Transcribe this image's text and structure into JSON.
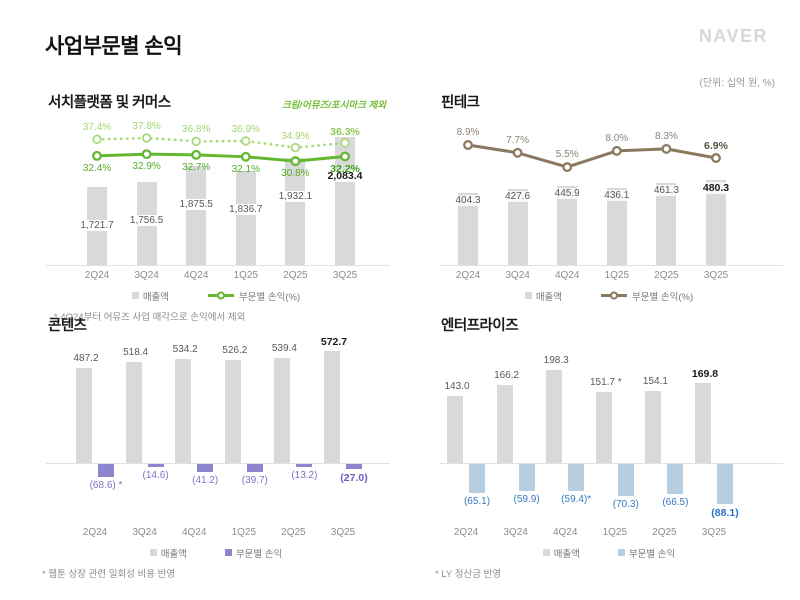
{
  "header": {
    "title": "사업부문별 손익",
    "logo": "NAVER",
    "unit_note": "(단위: 십억 원, %)"
  },
  "colors": {
    "bar_gray": "#d9d9d9",
    "green": "#63b830",
    "light_green": "#a9da7e",
    "brown": "#8a795e",
    "purple": "#8d86ce",
    "blue": "#b7cde0",
    "purple_label": "#7b73c6",
    "blue_label": "#3579c1"
  },
  "chart_data": [
    {
      "id": "search_commerce",
      "type": "bar",
      "title": "서치플랫폼 및 커머스",
      "note": "크림/어뮤즈/포시마크 제외",
      "categories": [
        "2Q24",
        "3Q24",
        "4Q24",
        "1Q25",
        "2Q25",
        "3Q25"
      ],
      "series": [
        {
          "name": "매출액",
          "type": "bar",
          "color": "#d9d9d9",
          "values": [
            1721.7,
            1756.5,
            1875.5,
            1836.7,
            1932.1,
            2083.4
          ],
          "labels": [
            "1,721.7",
            "1,756.5",
            "1,875.5",
            "1,836.7",
            "1,932.1",
            "2,083.4"
          ]
        },
        {
          "name": "부문별 손익(%)",
          "type": "line",
          "color": "#63b830",
          "values": [
            32.4,
            32.9,
            32.7,
            32.1,
            30.8,
            32.2
          ],
          "labels": [
            "32.4%",
            "32.9%",
            "32.7%",
            "32.1%",
            "30.8%",
            "32.2%"
          ]
        },
        {
          "name": "부문별 손익(%) 크림/어뮤즈/포시마크 제외",
          "type": "line-dotted",
          "color": "#a9da7e",
          "values": [
            37.4,
            37.8,
            36.8,
            36.9,
            34.9,
            36.3
          ],
          "labels": [
            "37.4%",
            "37.8%",
            "36.8%",
            "36.9%",
            "34.9%",
            "36.3%"
          ]
        }
      ],
      "legend": {
        "bar": "매출액",
        "line": "부문별 손익(%)"
      },
      "footnote": "* 4Q24부터 어뮤즈 사업 매각으로 손익에서 제외"
    },
    {
      "id": "fintech",
      "type": "bar",
      "title": "핀테크",
      "note": "",
      "categories": [
        "2Q24",
        "3Q24",
        "4Q24",
        "1Q25",
        "2Q25",
        "3Q25"
      ],
      "series": [
        {
          "name": "매출액",
          "type": "bar",
          "color": "#d9d9d9",
          "values": [
            404.3,
            427.6,
            445.9,
            436.1,
            461.3,
            480.3
          ],
          "labels": [
            "404.3",
            "427.6",
            "445.9",
            "436.1",
            "461.3",
            "480.3"
          ]
        },
        {
          "name": "부문별 손익(%)",
          "type": "line",
          "color": "#8a795e",
          "values": [
            8.9,
            7.7,
            5.5,
            8.0,
            8.3,
            6.9
          ],
          "labels": [
            "8.9%",
            "7.7%",
            "5.5%",
            "8.0%",
            "8.3%",
            "6.9%"
          ]
        }
      ],
      "legend": {
        "bar": "매출액",
        "line": "부문별 손익(%)"
      },
      "footnote": ""
    },
    {
      "id": "content",
      "type": "bar",
      "title": "콘텐츠",
      "note": "",
      "categories": [
        "2Q24",
        "3Q24",
        "4Q24",
        "1Q25",
        "2Q25",
        "3Q25"
      ],
      "series": [
        {
          "name": "매출액",
          "type": "bar",
          "color": "#d9d9d9",
          "values": [
            487.2,
            518.4,
            534.2,
            526.2,
            539.4,
            572.7
          ],
          "labels": [
            "487.2",
            "518.4",
            "534.2",
            "526.2",
            "539.4",
            "572.7"
          ]
        },
        {
          "name": "부문별 손익",
          "type": "bar-negative",
          "color": "#8d86ce",
          "values": [
            -68.6,
            -14.6,
            -41.2,
            -39.7,
            -13.2,
            -27.0
          ],
          "labels": [
            "(68.6) *",
            "(14.6)",
            "(41.2)",
            "(39.7)",
            "(13.2)",
            "(27.0)"
          ]
        }
      ],
      "legend": {
        "bar": "매출액",
        "bar2": "부문별 손익"
      },
      "footnote": "* 웹툰 상장 관련 일회성 비용 반영"
    },
    {
      "id": "enterprise",
      "type": "bar",
      "title": "엔터프라이즈",
      "note": "",
      "categories": [
        "2Q24",
        "3Q24",
        "4Q24",
        "1Q25",
        "2Q25",
        "3Q25"
      ],
      "series": [
        {
          "name": "매출액",
          "type": "bar",
          "color": "#d9d9d9",
          "values": [
            143.0,
            166.2,
            198.3,
            151.7,
            154.1,
            169.8
          ],
          "labels": [
            "143.0",
            "166.2",
            "198.3",
            "151.7 *",
            "154.1",
            "169.8"
          ]
        },
        {
          "name": "부문별 손익",
          "type": "bar-negative",
          "color": "#b7cde0",
          "values": [
            -65.1,
            -59.9,
            -59.4,
            -70.3,
            -66.5,
            -88.1
          ],
          "labels": [
            "(65.1)",
            "(59.9)",
            "(59.4)*",
            "(70.3)",
            "(66.5)",
            "(88.1)"
          ]
        }
      ],
      "legend": {
        "bar": "매출액",
        "bar2": "부문별 손익"
      },
      "footnote": "* LY 정산금 반영"
    }
  ]
}
